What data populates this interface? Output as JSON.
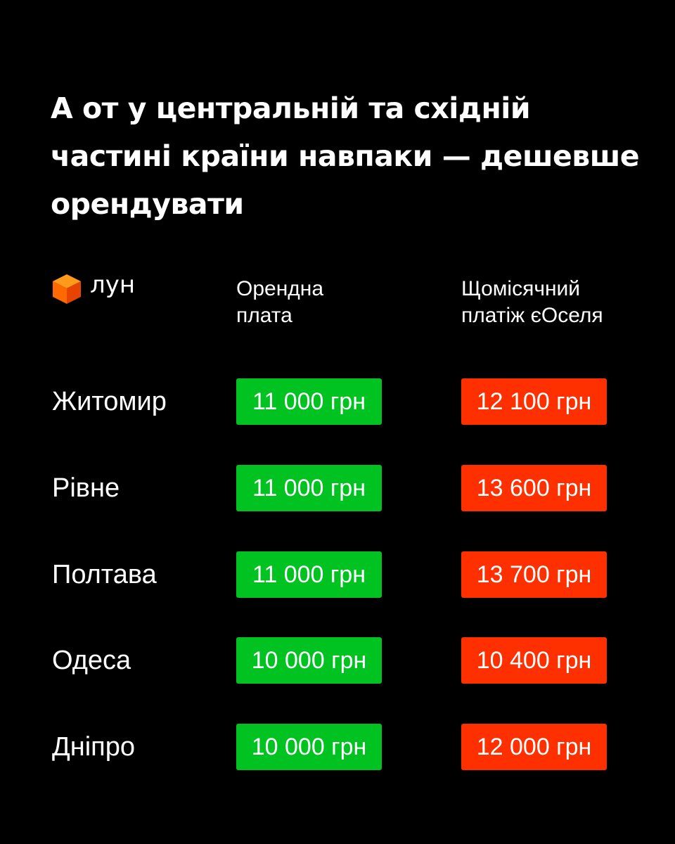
{
  "title": "А от у центральній та східній частині країни навпаки — дешевше орендувати",
  "logo": {
    "text": "лун",
    "icon": "orange-cube-icon"
  },
  "columns": [
    "Орендна плата",
    "Щомісячний платіж єОселя"
  ],
  "colors": {
    "rent": "#00c220",
    "mortgage": "#ff3000",
    "background": "#000000"
  },
  "rows": [
    {
      "city": "Житомир",
      "rent": "11 000 грн",
      "mortgage": "12 100 грн"
    },
    {
      "city": "Рівне",
      "rent": "11 000 грн",
      "mortgage": "13 600 грн"
    },
    {
      "city": "Полтава",
      "rent": "11 000 грн",
      "mortgage": "13 700 грн"
    },
    {
      "city": "Одеса",
      "rent": "10 000 грн",
      "mortgage": "10 400 грн"
    },
    {
      "city": "Дніпро",
      "rent": "10 000 грн",
      "mortgage": "12 000 грн"
    }
  ]
}
